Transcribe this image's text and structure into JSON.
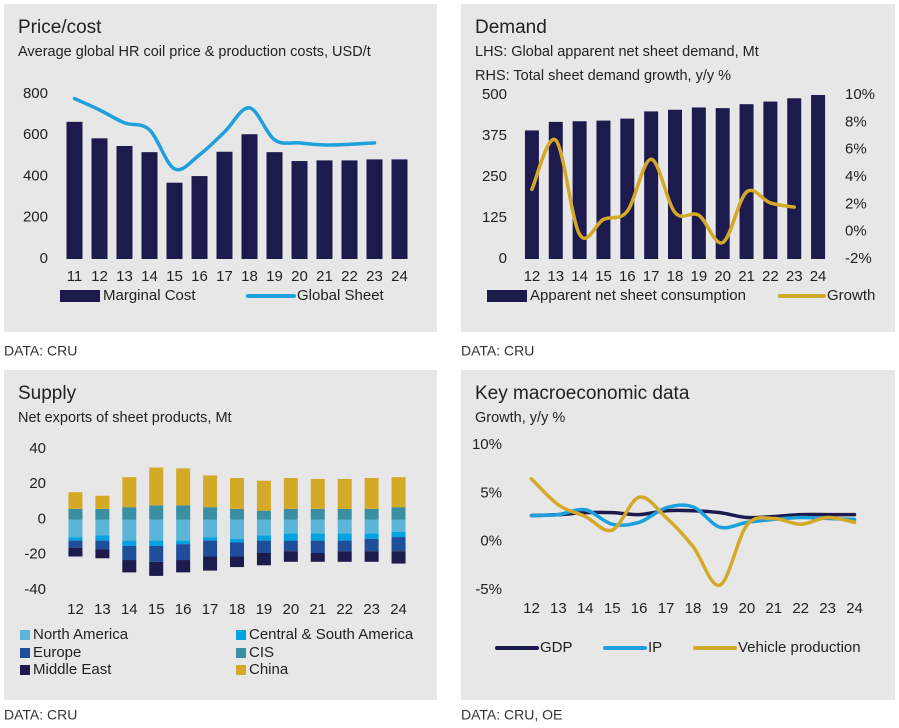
{
  "chart_data": [
    {
      "type": "combo",
      "title": "Price/cost",
      "subtitle": "Average global HR coil price & production costs, USD/t",
      "source": "DATA: CRU",
      "categories": [
        "11",
        "12",
        "13",
        "14",
        "15",
        "16",
        "17",
        "18",
        "19",
        "20",
        "21",
        "22",
        "23",
        "24"
      ],
      "ylim": [
        0,
        800
      ],
      "yticks": [
        0,
        200,
        400,
        600,
        800
      ],
      "smooth": true,
      "series": [
        {
          "name": "Marginal Cost",
          "type": "bar",
          "color": "#1d1a4e",
          "values": [
            665,
            585,
            548,
            518,
            370,
            402,
            520,
            605,
            518,
            475,
            478,
            478,
            483,
            483
          ]
        },
        {
          "name": "Global Sheet",
          "type": "line",
          "color": "#1ea0dc",
          "values": [
            778,
            723,
            660,
            626,
            437,
            505,
            616,
            733,
            578,
            563,
            553,
            556,
            563,
            null
          ]
        }
      ]
    },
    {
      "type": "combo",
      "title": "Demand",
      "ylabel": "LHS: Global apparent net sheet demand, Mt",
      "y2label": "RHS: Total sheet demand growth, y/y %",
      "source": "DATA: CRU",
      "categories": [
        "12",
        "13",
        "14",
        "15",
        "16",
        "17",
        "18",
        "19",
        "20",
        "21",
        "22",
        "23",
        "24"
      ],
      "ylim": [
        0,
        500
      ],
      "yticks": [
        0,
        125,
        250,
        375,
        500
      ],
      "y2lim": [
        -2,
        10
      ],
      "y2ticks": [
        {
          "value": -2,
          "label": "-2%"
        },
        {
          "value": 0,
          "label": "0%"
        },
        {
          "value": 2,
          "label": "2%"
        },
        {
          "value": 4,
          "label": "4%"
        },
        {
          "value": 6,
          "label": "6%"
        },
        {
          "value": 8,
          "label": "8%"
        },
        {
          "value": 10,
          "label": "10%"
        }
      ],
      "smooth": true,
      "series": [
        {
          "name": "Apparent net sheet consumption",
          "type": "bar",
          "color": "#1d1a4e",
          "values": [
            392,
            418,
            420,
            422,
            428,
            450,
            455,
            462,
            460,
            472,
            480,
            490,
            500
          ]
        },
        {
          "name": "Growth",
          "type": "line",
          "axis": "y2",
          "color": "#d4a928",
          "values": [
            3.1,
            6.7,
            -0.2,
            0.9,
            1.5,
            5.3,
            1.4,
            1.2,
            -0.8,
            2.9,
            2.1,
            1.8,
            null
          ]
        }
      ]
    },
    {
      "type": "stacked_bar",
      "title": "Supply",
      "subtitle": "Net exports of sheet products, Mt",
      "source": "DATA: CRU",
      "categories": [
        "12",
        "13",
        "14",
        "15",
        "16",
        "17",
        "18",
        "19",
        "20",
        "21",
        "22",
        "23",
        "24"
      ],
      "ylim": [
        -40,
        40
      ],
      "yticks": [
        -40,
        -20,
        0,
        20,
        40
      ],
      "series": [
        {
          "name": "North America",
          "color": "#5bb5d9",
          "values": [
            -10,
            -9,
            -12,
            -12,
            -12,
            -10,
            -11,
            -9,
            -8,
            -8,
            -8,
            -8,
            -7
          ]
        },
        {
          "name": "Central & South America",
          "color": "#00a3e0",
          "values": [
            -2,
            -3,
            -3,
            -3,
            -2,
            -2,
            -2,
            -3,
            -4,
            -4,
            -4,
            -3,
            -3
          ]
        },
        {
          "name": "Europe",
          "color": "#1f4e9a",
          "values": [
            -4,
            -5,
            -8,
            -9,
            -9,
            -9,
            -8,
            -7,
            -6,
            -7,
            -6,
            -7,
            -8
          ]
        },
        {
          "name": "CIS",
          "color": "#3a8fa3",
          "values": [
            6,
            6,
            7,
            8,
            8,
            7,
            6,
            5,
            6,
            6,
            6,
            6,
            7
          ]
        },
        {
          "name": "Middle East",
          "color": "#1d1a4e",
          "values": [
            -5,
            -5,
            -7,
            -8,
            -7,
            -8,
            -6,
            -7,
            -6,
            -5,
            -6,
            -6,
            -7
          ]
        },
        {
          "name": "China",
          "color": "#d4a928",
          "values": [
            9.5,
            7.5,
            17,
            21.5,
            21,
            18,
            17.5,
            17,
            17.5,
            17,
            17,
            17.5,
            17
          ]
        }
      ]
    },
    {
      "type": "line",
      "title": "Key macroeconomic data",
      "subtitle": "Growth, y/y %",
      "source": "DATA: CRU, OE",
      "categories": [
        "12",
        "13",
        "14",
        "15",
        "16",
        "17",
        "18",
        "19",
        "20",
        "21",
        "22",
        "23",
        "24"
      ],
      "ylim": [
        -5,
        10
      ],
      "yticks": [
        {
          "value": -5,
          "label": "-5%"
        },
        {
          "value": 0,
          "label": "0%"
        },
        {
          "value": 5,
          "label": "5%"
        },
        {
          "value": 10,
          "label": "10%"
        }
      ],
      "smooth": true,
      "series": [
        {
          "name": "GDP",
          "color": "#1d1a4e",
          "values": [
            2.7,
            2.8,
            3.0,
            3.0,
            2.8,
            3.2,
            3.2,
            3.0,
            2.5,
            2.6,
            2.8,
            2.8,
            2.8
          ]
        },
        {
          "name": "IP",
          "color": "#1ea0dc",
          "values": [
            2.7,
            2.8,
            3.3,
            1.8,
            2.0,
            3.5,
            3.6,
            1.5,
            2.0,
            2.3,
            2.5,
            2.4,
            2.3
          ]
        },
        {
          "name": "Vehicle production",
          "color": "#d4a928",
          "values": [
            6.5,
            3.8,
            2.6,
            1.2,
            4.6,
            2.5,
            -0.5,
            -4.5,
            1.7,
            2.4,
            1.8,
            2.5,
            2.0
          ]
        }
      ]
    }
  ]
}
